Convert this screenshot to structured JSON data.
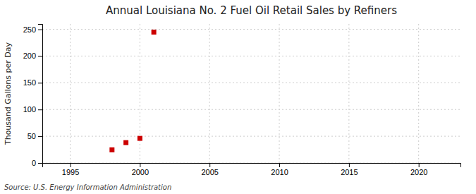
{
  "chart_data": {
    "type": "scatter",
    "title": "Annual Louisiana No. 2 Fuel Oil Retail Sales by Refiners",
    "ylabel": "Thousand Gallons per Day",
    "annotation": "Source: U.S. Energy Information Administration",
    "x": [
      1998,
      1999,
      2000,
      2001
    ],
    "values": [
      24.5,
      38.0,
      46.0,
      244.8
    ],
    "color": "#cc0000",
    "marker": "square",
    "xlim": [
      1993,
      2023
    ],
    "ylim": [
      0,
      260
    ],
    "xticks": [
      1995,
      2000,
      2005,
      2010,
      2015,
      2020
    ],
    "yticks": [
      0,
      50,
      100,
      150,
      200,
      250
    ],
    "grid": true
  }
}
